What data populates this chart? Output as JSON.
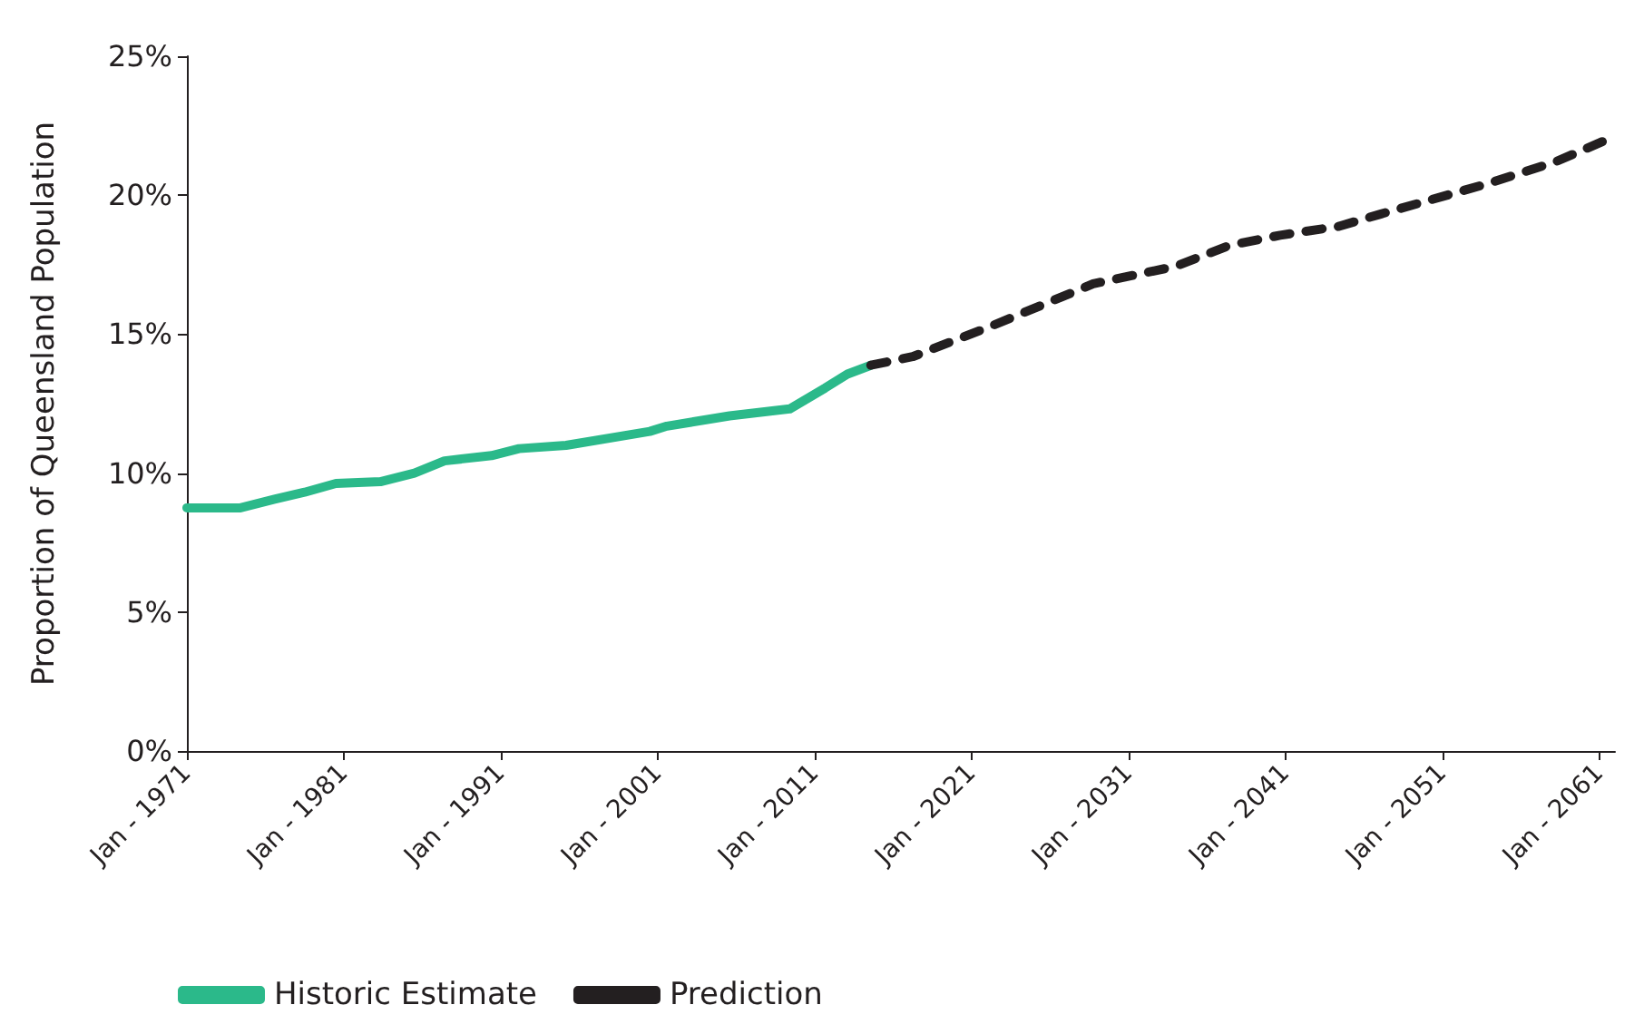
{
  "chart_data": {
    "type": "line",
    "ylabel": "Proportion of Queensland Population",
    "xlim": [
      "1971-01",
      "2062-01"
    ],
    "ylim": [
      0,
      25
    ],
    "xticks": [
      {
        "value": "1971-01",
        "label": "Jan - 1971"
      },
      {
        "value": "1981-01",
        "label": "Jan - 1981"
      },
      {
        "value": "1991-01",
        "label": "Jan - 1991"
      },
      {
        "value": "2001-01",
        "label": "Jan - 2001"
      },
      {
        "value": "2011-01",
        "label": "Jan - 2011"
      },
      {
        "value": "2021-01",
        "label": "Jan - 2021"
      },
      {
        "value": "2031-01",
        "label": "Jan - 2031"
      },
      {
        "value": "2041-01",
        "label": "Jan - 2041"
      },
      {
        "value": "2051-01",
        "label": "Jan - 2051"
      },
      {
        "value": "2061-01",
        "label": "Jan - 2061"
      }
    ],
    "yticks": [
      {
        "value": 0,
        "label": "0%"
      },
      {
        "value": 5,
        "label": "5%"
      },
      {
        "value": 10,
        "label": "10%"
      },
      {
        "value": 15,
        "label": "15%"
      },
      {
        "value": 20,
        "label": "20%"
      },
      {
        "value": 25,
        "label": "25%"
      }
    ],
    "grid": false,
    "legend": "bottom left",
    "marker": "none",
    "series": [
      {
        "name": "Historic Estimate",
        "color": "#2bb98a",
        "line_style": "solid",
        "x": [
          "1971-01",
          "1974-06",
          "1976-08",
          "1978-07",
          "1980-07",
          "1983-05",
          "1985-07",
          "1987-06",
          "1990-06",
          "1992-03",
          "1995-03",
          "2000-07",
          "2001-08",
          "2005-08",
          "2009-06",
          "2011-09",
          "2013-02",
          "2014-08"
        ],
        "values": [
          8.75,
          8.75,
          9.06,
          9.31,
          9.63,
          9.69,
          10.0,
          10.44,
          10.63,
          10.88,
          11.0,
          11.5,
          11.69,
          12.06,
          12.31,
          13.06,
          13.56,
          13.88
        ]
      },
      {
        "name": "Prediction",
        "color": "#231f20",
        "line_style": "dashed",
        "x": [
          "2014-08",
          "2017-04",
          "2022-02",
          "2028-10",
          "2034-01",
          "2037-06",
          "2040-09",
          "2044-06",
          "2047-01",
          "2053-09",
          "2058-03",
          "2061-07"
        ],
        "values": [
          13.88,
          14.19,
          15.25,
          16.81,
          17.44,
          18.19,
          18.56,
          18.88,
          19.31,
          20.38,
          21.19,
          22.0
        ]
      }
    ]
  }
}
